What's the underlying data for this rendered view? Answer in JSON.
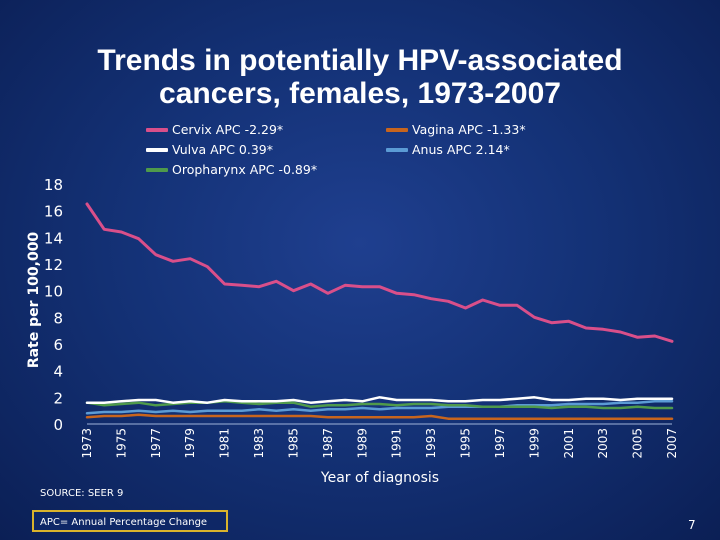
{
  "slide": {
    "title": "Trends in potentially HPV-associated cancers, females, 1973-2007",
    "source": "SOURCE: SEER 9",
    "note": "APC= Annual Percentage Change",
    "page_number": "7"
  },
  "chart_data": {
    "type": "line",
    "title": "Trends in potentially HPV-associated cancers, females, 1973-2007",
    "xlabel": "Year of diagnosis",
    "ylabel": "Rate per 100,000",
    "ylim": [
      0,
      18
    ],
    "yticks": [
      0,
      2,
      4,
      6,
      8,
      10,
      12,
      14,
      16,
      18
    ],
    "xticks": [
      1973,
      1975,
      1977,
      1979,
      1981,
      1983,
      1985,
      1987,
      1989,
      1991,
      1993,
      1995,
      1997,
      1999,
      2001,
      2003,
      2005,
      2007
    ],
    "xlim": [
      1973,
      2007
    ],
    "grid": false,
    "legend_position": "top",
    "x": [
      1973,
      1974,
      1975,
      1976,
      1977,
      1978,
      1979,
      1980,
      1981,
      1982,
      1983,
      1984,
      1985,
      1986,
      1987,
      1988,
      1989,
      1990,
      1991,
      1992,
      1993,
      1994,
      1995,
      1996,
      1997,
      1998,
      1999,
      2000,
      2001,
      2002,
      2003,
      2004,
      2005,
      2006,
      2007
    ],
    "series": [
      {
        "name": "Cervix",
        "legend": "Cervix APC -2.29*",
        "color": "#d94f8a",
        "values": [
          16.5,
          14.6,
          14.4,
          13.9,
          12.7,
          12.2,
          12.4,
          11.8,
          10.5,
          10.4,
          10.3,
          10.7,
          10.0,
          10.5,
          9.8,
          10.4,
          10.3,
          10.3,
          9.8,
          9.7,
          9.4,
          9.2,
          8.7,
          9.3,
          8.9,
          8.9,
          8.0,
          7.6,
          7.7,
          7.2,
          7.1,
          6.9,
          6.5,
          6.6,
          6.2
        ]
      },
      {
        "name": "Vagina",
        "legend": "Vagina APC -1.33*",
        "color": "#c8651e",
        "values": [
          0.5,
          0.6,
          0.6,
          0.7,
          0.6,
          0.6,
          0.6,
          0.6,
          0.6,
          0.6,
          0.6,
          0.6,
          0.6,
          0.6,
          0.5,
          0.5,
          0.5,
          0.5,
          0.5,
          0.5,
          0.6,
          0.4,
          0.4,
          0.4,
          0.4,
          0.4,
          0.4,
          0.4,
          0.4,
          0.4,
          0.4,
          0.4,
          0.4,
          0.4,
          0.4
        ]
      },
      {
        "name": "Vulva",
        "legend": "Vulva APC 0.39*",
        "color": "#ffffff",
        "values": [
          1.6,
          1.6,
          1.7,
          1.8,
          1.8,
          1.6,
          1.7,
          1.6,
          1.8,
          1.7,
          1.7,
          1.7,
          1.8,
          1.6,
          1.7,
          1.8,
          1.7,
          2.0,
          1.8,
          1.8,
          1.8,
          1.7,
          1.7,
          1.8,
          1.8,
          1.9,
          2.0,
          1.8,
          1.8,
          1.9,
          1.9,
          1.8,
          1.9,
          1.9,
          1.9
        ]
      },
      {
        "name": "Anus",
        "legend": "Anus APC 2.14*",
        "color": "#5b9bd5",
        "values": [
          0.8,
          0.9,
          0.9,
          1.0,
          0.9,
          1.0,
          0.9,
          1.0,
          1.0,
          1.0,
          1.1,
          1.0,
          1.1,
          1.0,
          1.1,
          1.1,
          1.2,
          1.1,
          1.2,
          1.2,
          1.2,
          1.3,
          1.3,
          1.3,
          1.3,
          1.4,
          1.4,
          1.4,
          1.5,
          1.5,
          1.5,
          1.6,
          1.6,
          1.7,
          1.7
        ]
      },
      {
        "name": "Oropharynx",
        "legend": "Oropharynx APC -0.89*",
        "color": "#4f9a4b",
        "values": [
          1.6,
          1.4,
          1.5,
          1.6,
          1.4,
          1.5,
          1.6,
          1.6,
          1.7,
          1.6,
          1.5,
          1.6,
          1.6,
          1.3,
          1.4,
          1.4,
          1.5,
          1.5,
          1.4,
          1.5,
          1.5,
          1.4,
          1.4,
          1.3,
          1.3,
          1.3,
          1.3,
          1.2,
          1.3,
          1.3,
          1.2,
          1.2,
          1.3,
          1.2,
          1.2
        ]
      }
    ]
  }
}
